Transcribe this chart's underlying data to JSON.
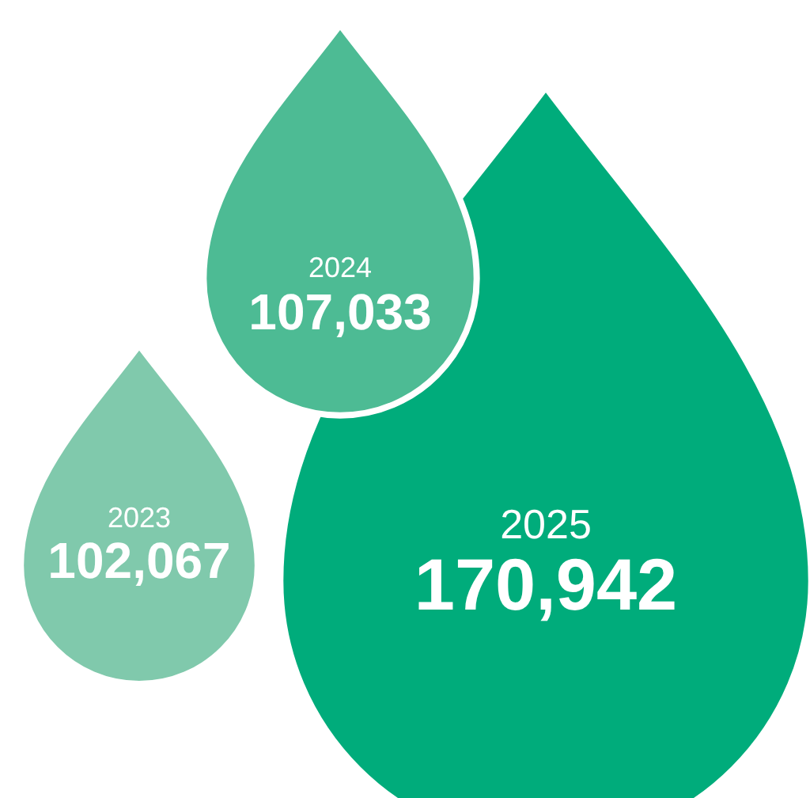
{
  "chart_data": {
    "type": "other",
    "categories": [
      "2023",
      "2024",
      "2025"
    ],
    "values": [
      102067,
      107033,
      170942
    ],
    "value_labels": [
      "102,067",
      "107,033",
      "170,942"
    ],
    "colors": [
      "#80c9ac",
      "#4dbb94",
      "#00ac7b"
    ]
  }
}
